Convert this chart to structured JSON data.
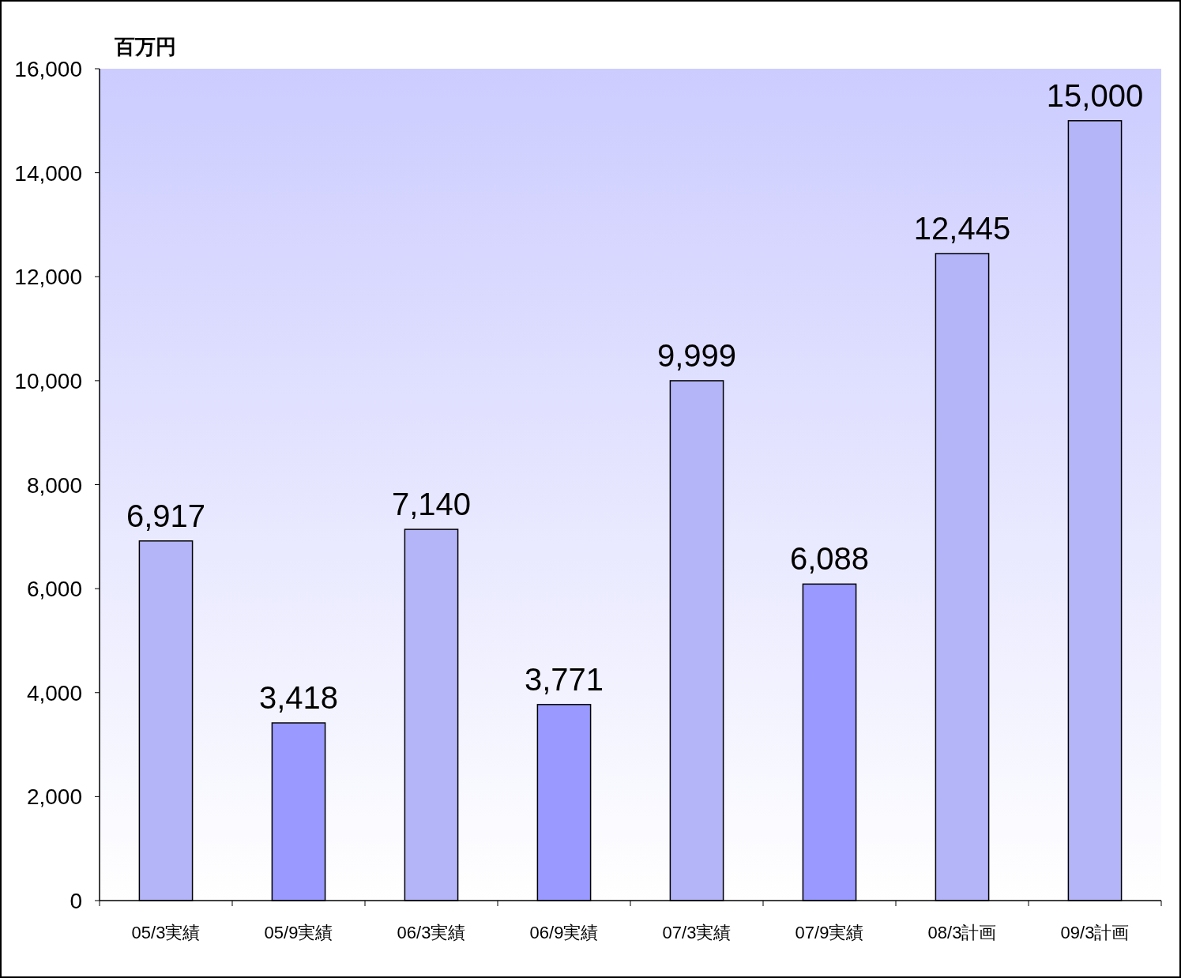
{
  "chart_data": {
    "type": "bar",
    "ylabel": "百万円",
    "categories": [
      "05/3実績",
      "05/9実績",
      "06/3実績",
      "06/9実績",
      "07/3実績",
      "07/9実績",
      "08/3計画",
      "09/3計画"
    ],
    "values": [
      6917,
      3418,
      7140,
      3771,
      9999,
      6088,
      12445,
      15000
    ],
    "colors": [
      "#b4b4f8",
      "#9999ff",
      "#b4b4f8",
      "#9999ff",
      "#b4b4f8",
      "#9999ff",
      "#b4b4f8",
      "#b4b4f8"
    ],
    "ylim": [
      0,
      16000
    ],
    "yticks": [
      {
        "value": 0,
        "label": "0"
      },
      {
        "value": 2000,
        "label": "2,000"
      },
      {
        "value": 4000,
        "label": "4,000"
      },
      {
        "value": 6000,
        "label": "6,000"
      },
      {
        "value": 8000,
        "label": "8,000"
      },
      {
        "value": 10000,
        "label": "10,000"
      },
      {
        "value": 12000,
        "label": "12,000"
      },
      {
        "value": 14000,
        "label": "14,000"
      },
      {
        "value": 16000,
        "label": "16,000"
      }
    ],
    "value_labels": [
      "6,917",
      "3,418",
      "7,140",
      "3,771",
      "9,999",
      "6,088",
      "12,445",
      "15,000"
    ]
  }
}
